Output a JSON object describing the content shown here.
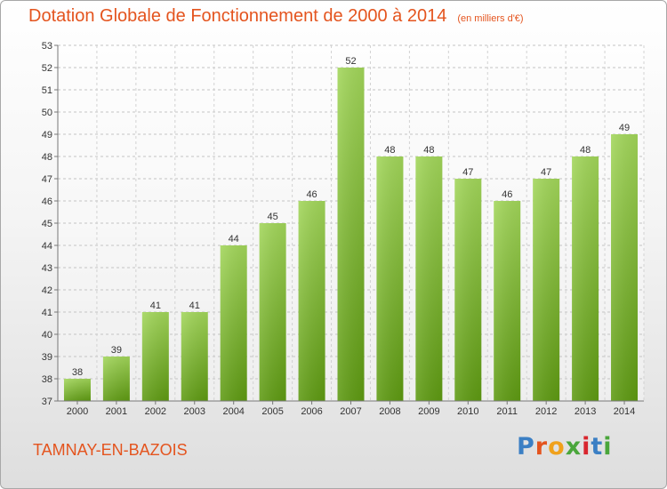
{
  "header": {
    "title": "Dotation Globale de Fonctionnement de 2000 à 2014",
    "subtitle": "(en milliers d'€)"
  },
  "footer": {
    "commune": "TAMNAY-EN-BAZOIS",
    "brand": "Proxiti"
  },
  "colors": {
    "accent": "#e4541e",
    "bar_top": "#a2d65a",
    "bar_bottom": "#5e9a12"
  },
  "chart_data": {
    "type": "bar",
    "categories": [
      "2000",
      "2001",
      "2002",
      "2003",
      "2004",
      "2005",
      "2006",
      "2007",
      "2008",
      "2009",
      "2010",
      "2011",
      "2012",
      "2013",
      "2014"
    ],
    "values": [
      38,
      39,
      41,
      41,
      44,
      45,
      46,
      52,
      48,
      48,
      47,
      46,
      47,
      48,
      49
    ],
    "ylim": [
      37,
      53
    ],
    "yticks": [
      37,
      38,
      39,
      40,
      41,
      42,
      43,
      44,
      45,
      46,
      47,
      48,
      49,
      50,
      51,
      52,
      53
    ],
    "grid": true,
    "data_labels": true
  }
}
